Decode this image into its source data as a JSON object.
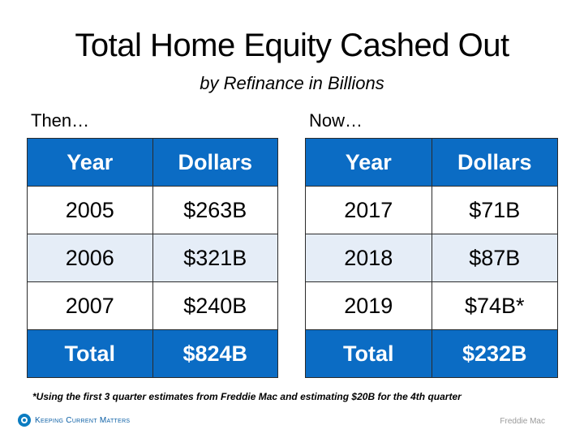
{
  "title": "Total Home Equity Cashed Out",
  "subtitle": "by Refinance in Billions",
  "colors": {
    "header_blue": "#0b6cc4",
    "tint_row": "#e5edf7",
    "brand_blue": "#0b7cc1"
  },
  "then": {
    "label": "Then…",
    "headers": [
      "Year",
      "Dollars"
    ],
    "rows": [
      {
        "year": "2005",
        "dollars": "$263B"
      },
      {
        "year": "2006",
        "dollars": "$321B"
      },
      {
        "year": "2007",
        "dollars": "$240B"
      }
    ],
    "total": {
      "label": "Total",
      "dollars": "$824B"
    }
  },
  "now": {
    "label": "Now…",
    "headers": [
      "Year",
      "Dollars"
    ],
    "rows": [
      {
        "year": "2017",
        "dollars": "$71B"
      },
      {
        "year": "2018",
        "dollars": "$87B"
      },
      {
        "year": "2019",
        "dollars": "$74B*"
      }
    ],
    "total": {
      "label": "Total",
      "dollars": "$232B"
    }
  },
  "footnote": "*Using the first 3 quarter estimates from Freddie Mac and estimating $20B for the 4th quarter",
  "brand": {
    "name": "Keeping Current Matters",
    "icon": "kcm-logo-icon"
  },
  "source": "Freddie Mac"
}
